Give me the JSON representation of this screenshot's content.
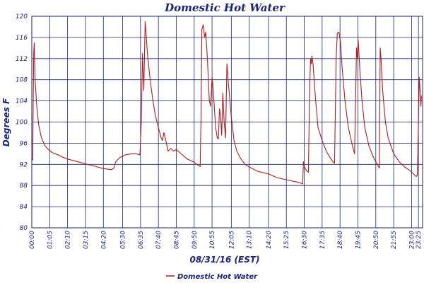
{
  "chart_data": {
    "type": "line",
    "title": "Domestic Hot Water",
    "xlabel": "08/31/16 (EST)",
    "ylabel": "Degrees F",
    "ylim": [
      80,
      120
    ],
    "yticks": [
      "80",
      "84",
      "88",
      "92",
      "96",
      "100",
      "104",
      "108",
      "112",
      "116",
      "120"
    ],
    "xticks": [
      "00:00",
      "01:05",
      "02:10",
      "03:15",
      "04:20",
      "05:30",
      "06:35",
      "07:40",
      "08:45",
      "09:50",
      "10:55",
      "12:05",
      "13:10",
      "14:20",
      "15:25",
      "16:30",
      "17:35",
      "18:40",
      "19:45",
      "20:50",
      "21:55",
      "23:00",
      "23:25"
    ],
    "xlim": [
      "00:00",
      "23:40"
    ],
    "grid": true,
    "legend_position": "bottom-center",
    "series": [
      {
        "name": "Domestic Hot Water",
        "color": "#b71c1c",
        "points": [
          [
            "00:00",
            93.0
          ],
          [
            "00:03",
            92.8
          ],
          [
            "00:07",
            113.0
          ],
          [
            "00:09",
            115.0
          ],
          [
            "00:12",
            108.0
          ],
          [
            "00:18",
            103.0
          ],
          [
            "00:25",
            99.5
          ],
          [
            "00:35",
            97.0
          ],
          [
            "00:48",
            95.5
          ],
          [
            "01:00",
            94.8
          ],
          [
            "01:15",
            94.2
          ],
          [
            "01:35",
            93.8
          ],
          [
            "01:50",
            93.4
          ],
          [
            "02:10",
            93.0
          ],
          [
            "02:40",
            92.6
          ],
          [
            "03:15",
            92.1
          ],
          [
            "03:45",
            91.7
          ],
          [
            "04:20",
            91.2
          ],
          [
            "04:50",
            91.0
          ],
          [
            "04:58",
            91.3
          ],
          [
            "05:05",
            92.5
          ],
          [
            "05:20",
            93.3
          ],
          [
            "05:40",
            93.8
          ],
          [
            "06:00",
            94.0
          ],
          [
            "06:20",
            94.0
          ],
          [
            "06:30",
            93.8
          ],
          [
            "06:33",
            93.8
          ],
          [
            "06:38",
            100.0
          ],
          [
            "06:42",
            113.0
          ],
          [
            "06:44",
            110.0
          ],
          [
            "06:47",
            106.0
          ],
          [
            "06:52",
            119.0
          ],
          [
            "06:55",
            117.0
          ],
          [
            "07:00",
            113.0
          ],
          [
            "07:10",
            108.0
          ],
          [
            "07:20",
            104.0
          ],
          [
            "07:30",
            101.0
          ],
          [
            "07:40",
            99.0
          ],
          [
            "07:50",
            97.0
          ],
          [
            "07:55",
            96.5
          ],
          [
            "08:00",
            98.0
          ],
          [
            "08:05",
            97.0
          ],
          [
            "08:15",
            94.5
          ],
          [
            "08:25",
            95.0
          ],
          [
            "08:35",
            94.5
          ],
          [
            "08:45",
            94.8
          ],
          [
            "09:05",
            93.9
          ],
          [
            "09:25",
            93.0
          ],
          [
            "09:50",
            92.4
          ],
          [
            "10:05",
            91.8
          ],
          [
            "10:12",
            91.6
          ],
          [
            "10:15",
            101.0
          ],
          [
            "10:18",
            117.5
          ],
          [
            "10:23",
            118.4
          ],
          [
            "10:28",
            116.0
          ],
          [
            "10:32",
            117.0
          ],
          [
            "10:38",
            112.0
          ],
          [
            "10:45",
            104.0
          ],
          [
            "10:50",
            103.0
          ],
          [
            "10:55",
            108.5
          ],
          [
            "10:58",
            107.0
          ],
          [
            "11:03",
            103.0
          ],
          [
            "11:08",
            99.0
          ],
          [
            "11:14",
            97.0
          ],
          [
            "11:18",
            96.8
          ],
          [
            "11:22",
            102.5
          ],
          [
            "11:26",
            101.0
          ],
          [
            "11:30",
            97.5
          ],
          [
            "11:34",
            105.5
          ],
          [
            "11:39",
            100.0
          ],
          [
            "11:44",
            97.0
          ],
          [
            "11:49",
            111.0
          ],
          [
            "11:55",
            107.0
          ],
          [
            "12:05",
            101.0
          ],
          [
            "12:15",
            96.5
          ],
          [
            "12:25",
            94.5
          ],
          [
            "12:40",
            93.0
          ],
          [
            "12:55",
            92.0
          ],
          [
            "13:10",
            91.5
          ],
          [
            "13:40",
            90.7
          ],
          [
            "14:20",
            90.2
          ],
          [
            "14:50",
            89.5
          ],
          [
            "15:25",
            89.1
          ],
          [
            "15:50",
            88.8
          ],
          [
            "16:10",
            88.6
          ],
          [
            "16:20",
            88.4
          ],
          [
            "16:24",
            88.3
          ],
          [
            "16:27",
            92.5
          ],
          [
            "16:31",
            91.5
          ],
          [
            "16:38",
            90.8
          ],
          [
            "16:45",
            90.5
          ],
          [
            "16:50",
            107.0
          ],
          [
            "16:53",
            112.0
          ],
          [
            "16:56",
            111.0
          ],
          [
            "16:58",
            112.5
          ],
          [
            "17:02",
            111.0
          ],
          [
            "17:10",
            105.0
          ],
          [
            "17:20",
            99.0
          ],
          [
            "17:35",
            96.5
          ],
          [
            "17:50",
            94.5
          ],
          [
            "18:05",
            93.2
          ],
          [
            "18:15",
            92.4
          ],
          [
            "18:20",
            92.2
          ],
          [
            "18:26",
            112.0
          ],
          [
            "18:30",
            116.8
          ],
          [
            "18:36",
            117.0
          ],
          [
            "18:42",
            115.0
          ],
          [
            "18:48",
            110.0
          ],
          [
            "18:58",
            104.0
          ],
          [
            "19:10",
            99.0
          ],
          [
            "19:25",
            95.5
          ],
          [
            "19:33",
            94.0
          ],
          [
            "19:37",
            106.0
          ],
          [
            "19:40",
            114.0
          ],
          [
            "19:43",
            112.0
          ],
          [
            "19:46",
            115.5
          ],
          [
            "19:52",
            110.0
          ],
          [
            "20:00",
            104.0
          ],
          [
            "20:10",
            99.0
          ],
          [
            "20:25",
            95.5
          ],
          [
            "20:40",
            93.5
          ],
          [
            "20:50",
            92.5
          ],
          [
            "20:58",
            91.8
          ],
          [
            "21:03",
            91.3
          ],
          [
            "21:06",
            114.0
          ],
          [
            "21:09",
            112.0
          ],
          [
            "21:15",
            106.0
          ],
          [
            "21:25",
            100.0
          ],
          [
            "21:35",
            97.0
          ],
          [
            "21:55",
            94.0
          ],
          [
            "22:15",
            92.5
          ],
          [
            "22:35",
            91.5
          ],
          [
            "22:55",
            90.8
          ],
          [
            "23:05",
            90.3
          ],
          [
            "23:12",
            89.9
          ],
          [
            "23:17",
            89.7
          ],
          [
            "23:21",
            90.0
          ],
          [
            "23:25",
            100.0
          ],
          [
            "23:28",
            108.5
          ],
          [
            "23:31",
            106.0
          ],
          [
            "23:34",
            103.0
          ],
          [
            "23:36",
            105.0
          ]
        ]
      }
    ]
  }
}
